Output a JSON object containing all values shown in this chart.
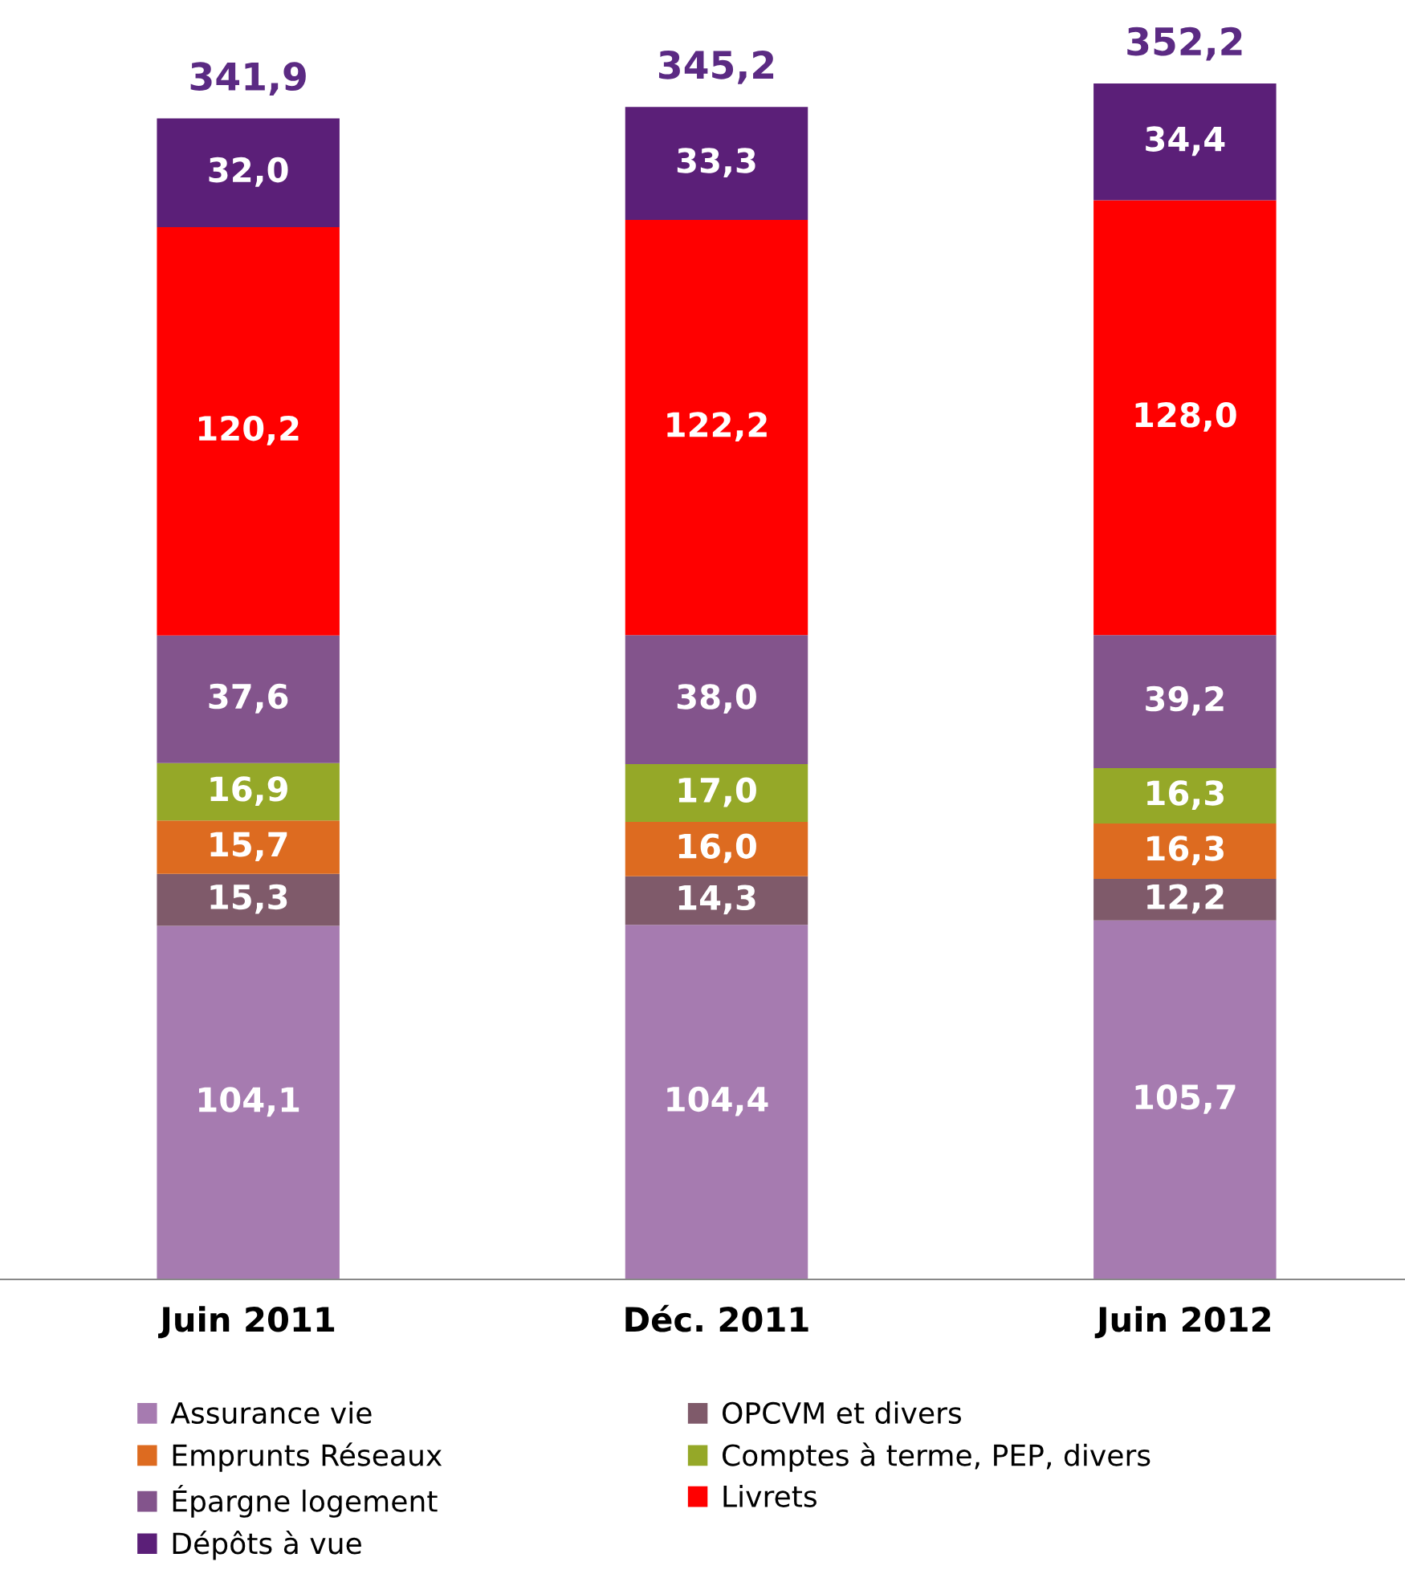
{
  "chart_data": {
    "type": "bar",
    "stacked": true,
    "categories": [
      "Juin 2011",
      "Déc. 2011",
      "Juin 2012"
    ],
    "series": [
      {
        "name": "Assurance vie",
        "color": "#a67bb0",
        "values": [
          104.1,
          104.4,
          105.7
        ],
        "value_labels": [
          "104,1",
          "104,4",
          "105,7"
        ]
      },
      {
        "name": "OPCVM et divers",
        "color": "#7f5a6a",
        "values": [
          15.3,
          14.3,
          12.2
        ],
        "value_labels": [
          "15,3",
          "14,3",
          "12,2"
        ]
      },
      {
        "name": "Emprunts Réseaux",
        "color": "#dd6b20",
        "values": [
          15.7,
          16.0,
          16.3
        ],
        "value_labels": [
          "15,7",
          "16,0",
          "16,3"
        ]
      },
      {
        "name": "Comptes à terme, PEP, divers",
        "color": "#95a828",
        "values": [
          16.9,
          17.0,
          16.3
        ],
        "value_labels": [
          "16,9",
          "17,0",
          "16,3"
        ]
      },
      {
        "name": "Épargne logement",
        "color": "#83548c",
        "values": [
          37.6,
          38.0,
          39.2
        ],
        "value_labels": [
          "37,6",
          "38,0",
          "39,2"
        ]
      },
      {
        "name": "Livrets",
        "color": "#ff0000",
        "values": [
          120.2,
          122.2,
          128.0
        ],
        "value_labels": [
          "120,2",
          "122,2",
          "128,0"
        ]
      },
      {
        "name": "Dépôts à vue",
        "color": "#5b1f78",
        "values": [
          32.0,
          33.3,
          34.4
        ],
        "value_labels": [
          "32,0",
          "33,3",
          "34,4"
        ]
      }
    ],
    "totals": [
      "341,9",
      "345,2",
      "352,2"
    ],
    "legend": "bottom",
    "grid": false,
    "tick_labels": "x"
  }
}
